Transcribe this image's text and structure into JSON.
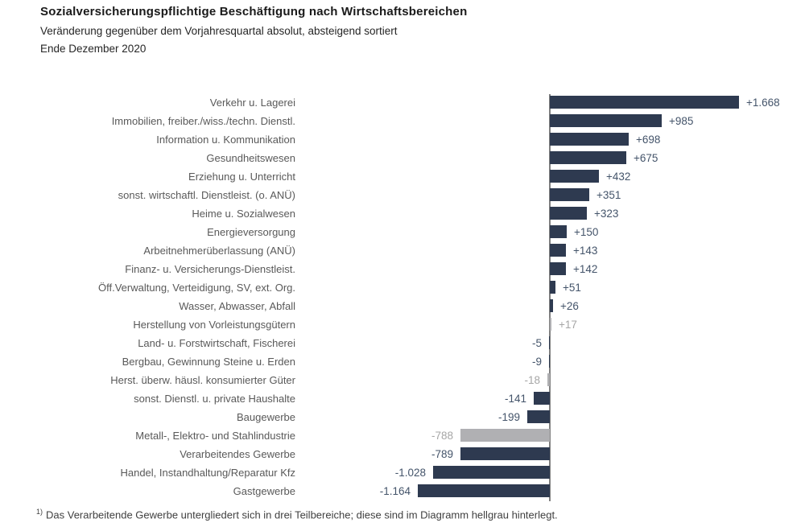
{
  "chart_data": {
    "type": "bar",
    "orientation": "horizontal",
    "title": "Sozialversicherungspflichtige Beschäftigung nach Wirtschaftsbereichen",
    "subtitle": "Veränderung gegenüber dem Vorjahresquartal absolut, absteigend sortiert",
    "date_line": "Ende Dezember 2020",
    "sort_order": "descending",
    "xlim": [
      -1300,
      1800
    ],
    "grid": false,
    "legend": false,
    "colors": {
      "bar": "#2e3a50",
      "highlight_bar": "#b0b0b3",
      "value_label": "#44546a",
      "highlight_value_label": "#a6a6a6",
      "axis_line": "#808080"
    },
    "rows": [
      {
        "label": "Verkehr u. Lagerei",
        "value": 1668,
        "display": "+1.668",
        "highlight": false
      },
      {
        "label": "Immobilien, freiber./wiss./techn. Dienstl.",
        "value": 985,
        "display": "+985",
        "highlight": false
      },
      {
        "label": "Information u. Kommunikation",
        "value": 698,
        "display": "+698",
        "highlight": false
      },
      {
        "label": "Gesundheitswesen",
        "value": 675,
        "display": "+675",
        "highlight": false
      },
      {
        "label": "Erziehung u. Unterricht",
        "value": 432,
        "display": "+432",
        "highlight": false
      },
      {
        "label": "sonst. wirtschaftl. Dienstleist. (o. ANÜ)",
        "value": 351,
        "display": "+351",
        "highlight": false
      },
      {
        "label": "Heime u. Sozialwesen",
        "value": 323,
        "display": "+323",
        "highlight": false
      },
      {
        "label": "Energieversorgung",
        "value": 150,
        "display": "+150",
        "highlight": false
      },
      {
        "label": "Arbeitnehmerüberlassung (ANÜ)",
        "value": 143,
        "display": "+143",
        "highlight": false
      },
      {
        "label": "Finanz- u. Versicherungs-Dienstleist.",
        "value": 142,
        "display": "+142",
        "highlight": false
      },
      {
        "label": "Öff.Verwaltung, Verteidigung, SV, ext. Org.",
        "value": 51,
        "display": "+51",
        "highlight": false
      },
      {
        "label": "Wasser, Abwasser, Abfall",
        "value": 26,
        "display": "+26",
        "highlight": false
      },
      {
        "label": "Herstellung von Vorleistungsgütern",
        "value": 17,
        "display": "+17",
        "highlight": true
      },
      {
        "label": "Land- u. Forstwirtschaft, Fischerei",
        "value": -5,
        "display": "-5",
        "highlight": false
      },
      {
        "label": "Bergbau, Gewinnung Steine u. Erden",
        "value": -9,
        "display": "-9",
        "highlight": false
      },
      {
        "label": "Herst. überw. häusl. konsumierter Güter",
        "value": -18,
        "display": "-18",
        "highlight": true
      },
      {
        "label": "sonst. Dienstl. u. private Haushalte",
        "value": -141,
        "display": "-141",
        "highlight": false
      },
      {
        "label": "Baugewerbe",
        "value": -199,
        "display": "-199",
        "highlight": false
      },
      {
        "label": "Metall-, Elektro- und Stahlindustrie",
        "value": -788,
        "display": "-788",
        "highlight": true
      },
      {
        "label": "Verarbeitendes Gewerbe",
        "value": -789,
        "display": "-789",
        "highlight": false
      },
      {
        "label": "Handel, Instandhaltung/Reparatur Kfz",
        "value": -1028,
        "display": "-1.028",
        "highlight": false
      },
      {
        "label": "Gastgewerbe",
        "value": -1164,
        "display": "-1.164",
        "highlight": false
      }
    ],
    "footnote_marker": "1)",
    "footnote_text": "Das Verarbeitende Gewerbe  untergliedert sich in drei  Teilbereiche; diese sind im Diagramm hellgrau hinterlegt."
  }
}
